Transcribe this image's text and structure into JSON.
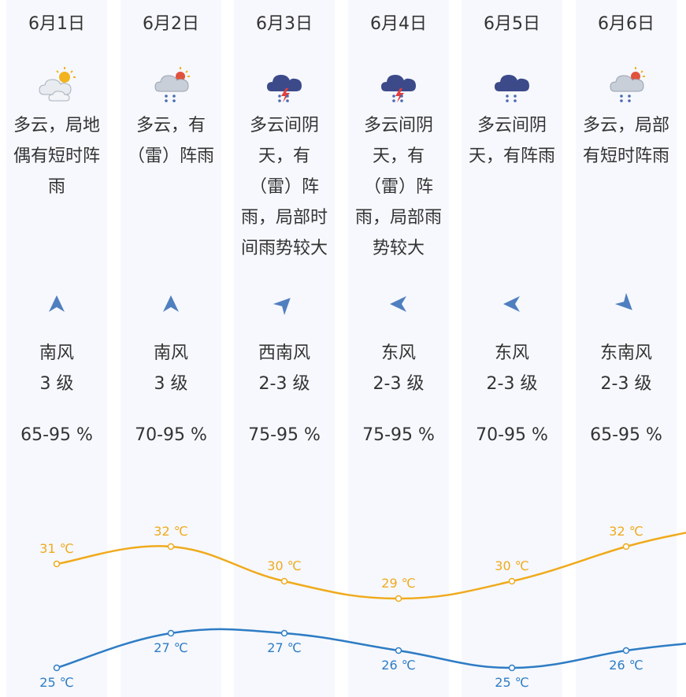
{
  "days": [
    {
      "date": "6月1日",
      "icon": "partly-cloudy-icon",
      "desc": [
        "多云，局地",
        "偶有短时阵",
        "雨"
      ],
      "wind_dir": "南风",
      "wind_level": "3 级",
      "wind_arrow_deg": 0,
      "humidity": "65-95 %"
    },
    {
      "date": "6月2日",
      "icon": "cloudy-rain-sun-icon",
      "desc": [
        "多云，有",
        "（雷）阵雨"
      ],
      "wind_dir": "南风",
      "wind_level": "3 级",
      "wind_arrow_deg": 0,
      "humidity": "70-95 %"
    },
    {
      "date": "6月3日",
      "icon": "thunderstorm-icon",
      "desc": [
        "多云间阴",
        "天，有",
        "（雷）阵",
        "雨，局部时",
        "间雨势较大"
      ],
      "wind_dir": "西南风",
      "wind_level": "2-3 级",
      "wind_arrow_deg": 45,
      "humidity": "75-95 %"
    },
    {
      "date": "6月4日",
      "icon": "thunderstorm-icon",
      "desc": [
        "多云间阴",
        "天，有",
        "（雷）阵",
        "雨，局部雨",
        "势较大"
      ],
      "wind_dir": "东风",
      "wind_level": "2-3 级",
      "wind_arrow_deg": -90,
      "humidity": "75-95 %"
    },
    {
      "date": "6月5日",
      "icon": "rain-cloud-icon",
      "desc": [
        "多云间阴",
        "天，有阵雨"
      ],
      "wind_dir": "东风",
      "wind_level": "2-3 级",
      "wind_arrow_deg": -90,
      "humidity": "70-95 %"
    },
    {
      "date": "6月6日",
      "icon": "cloudy-rain-sun-icon",
      "desc": [
        "多云，局部",
        "有短时阵雨"
      ],
      "wind_dir": "东南风",
      "wind_level": "2-3 级",
      "wind_arrow_deg": 135,
      "humidity": "65-95 %"
    }
  ],
  "chart_data": {
    "type": "line",
    "categories": [
      "6月1日",
      "6月2日",
      "6月3日",
      "6月4日",
      "6月5日",
      "6月6日"
    ],
    "unit": "℃",
    "series": [
      {
        "values": [
          31,
          32,
          30,
          29,
          30,
          32
        ],
        "color": "#f0aa1c"
      },
      {
        "values": [
          25,
          27,
          27,
          26,
          25,
          26
        ],
        "color": "#2e7cc4"
      }
    ],
    "ylim": [
      24,
      34
    ]
  }
}
